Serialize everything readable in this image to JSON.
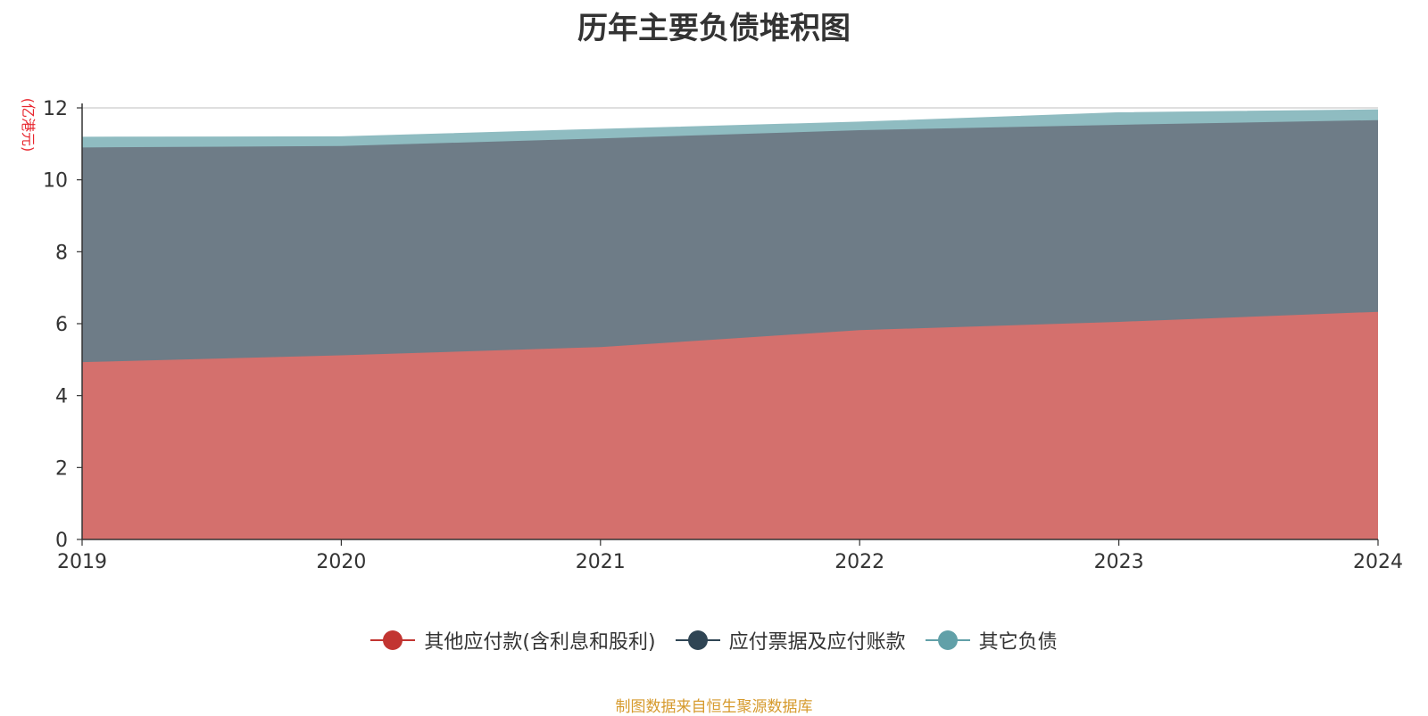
{
  "chart_data": {
    "type": "area",
    "stacked": true,
    "title": "历年主要负债堆积图",
    "ylabel": "(亿港元)",
    "xlabel": "",
    "x": [
      "2019",
      "2020",
      "2021",
      "2022",
      "2023",
      "2024"
    ],
    "ylim": [
      0,
      12
    ],
    "yticks": [
      0,
      2,
      4,
      6,
      8,
      10,
      12
    ],
    "grid": true,
    "legend_position": "bottom",
    "series": [
      {
        "name": "其他应付款(含利息和股利)",
        "values": [
          4.93,
          5.12,
          5.35,
          5.82,
          6.05,
          6.33
        ],
        "color": "#c23531",
        "fill": "#d4706d"
      },
      {
        "name": "应付票据及应付账款",
        "values": [
          5.97,
          5.82,
          5.8,
          5.56,
          5.48,
          5.33
        ],
        "color": "#2f4554",
        "fill": "#6e7c87"
      },
      {
        "name": "其它负债",
        "values": [
          0.28,
          0.25,
          0.25,
          0.22,
          0.33,
          0.28
        ],
        "color": "#61a0a8",
        "fill": "#8fbcc1"
      }
    ]
  },
  "footer": {
    "source": "制图数据来自恒生聚源数据库"
  }
}
